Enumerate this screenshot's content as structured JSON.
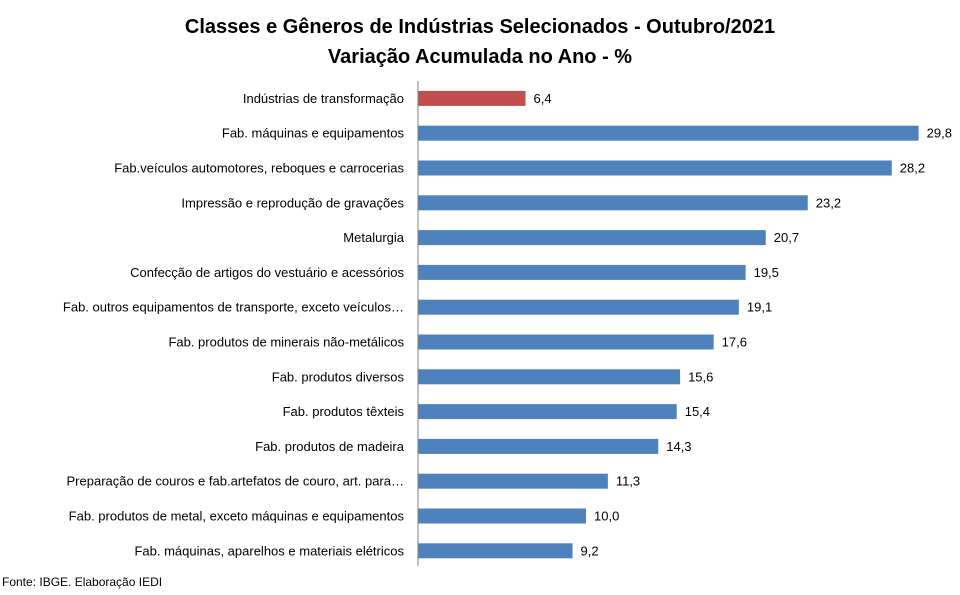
{
  "chart_data": {
    "type": "bar",
    "orientation": "horizontal",
    "title": "Classes e Gêneros de Indústrias Selecionados - Outubro/2021",
    "subtitle": "Variação Acumulada no Ano - %",
    "categories": [
      "Indústrias de transformação",
      "Fab. máquinas e equipamentos",
      "Fab.veículos automotores, reboques e carrocerias",
      "Impressão e reprodução de gravações",
      "Metalurgia",
      "Confecção de artigos do vestuário e acessórios",
      "Fab. outros equipamentos de transporte, exceto veículos…",
      "Fab. produtos de minerais não-metálicos",
      "Fab. produtos diversos",
      "Fab. produtos têxteis",
      "Fab. produtos de madeira",
      "Preparação de couros e fab.artefatos de couro, art. para…",
      "Fab. produtos de metal, exceto máquinas e equipamentos",
      "Fab. máquinas, aparelhos e materiais elétricos"
    ],
    "values": [
      6.4,
      29.8,
      28.2,
      23.2,
      20.7,
      19.5,
      19.1,
      17.6,
      15.6,
      15.4,
      14.3,
      11.3,
      10.0,
      9.2
    ],
    "value_labels": [
      "6,4",
      "29,8",
      "28,2",
      "23,2",
      "20,7",
      "19,5",
      "19,1",
      "17,6",
      "15,6",
      "15,4",
      "14,3",
      "11,3",
      "10,0",
      "9,2"
    ],
    "highlight_index": 0,
    "colors": {
      "bar": "#4f81bd",
      "highlight": "#c0504d",
      "axis": "#808080"
    },
    "xlim": [
      0,
      30
    ],
    "grid": false,
    "legend": "none"
  },
  "source": "Fonte: IBGE. Elaboração IEDI"
}
